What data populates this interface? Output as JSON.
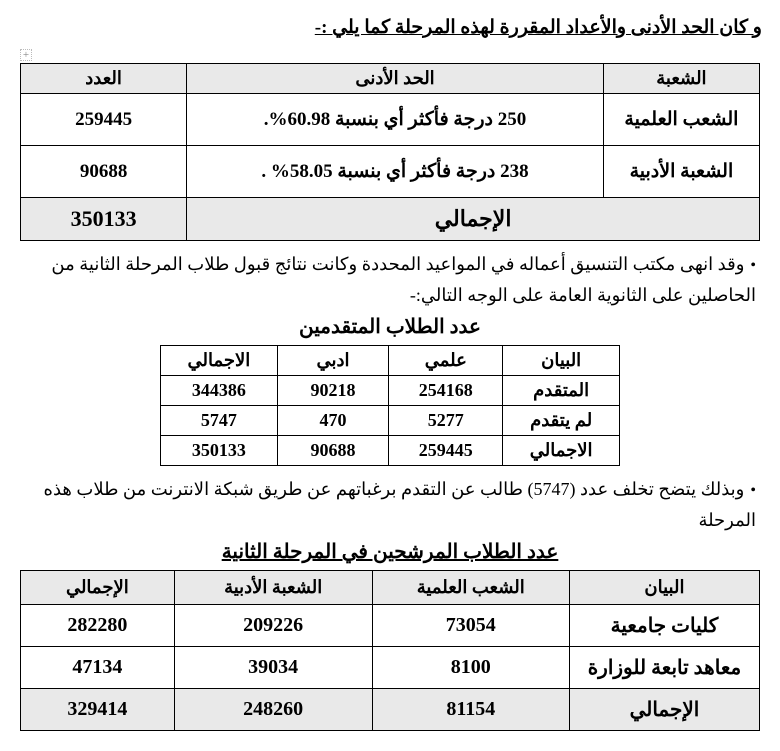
{
  "heading1": "و كان الحد الأدنى والأعداد المقررة لهذه المرحلة كما يلي :-",
  "table1": {
    "headers": {
      "division": "الشعبة",
      "minimum": "الحد الأدنى",
      "count": "العدد"
    },
    "rows": [
      {
        "division": "الشعب العلمية",
        "minimum": "250 درجة فأكثر أي بنسبة 60.98%.",
        "count": "259445"
      },
      {
        "division": "الشعبة الأدبية",
        "minimum": "238 درجة فأكثر أي بنسبة 58.05% .",
        "count": "90688"
      }
    ],
    "total": {
      "label": "الإجمالي",
      "count": "350133"
    }
  },
  "para1": "وقد انهى مكتب التنسيق أعماله في المواعيد المحددة وكانت نتائج قبول طلاب المرحلة الثانية من الحاصلين على الثانوية العامة على الوجه التالي:-",
  "subheading2": "عدد الطلاب المتقدمين",
  "table2": {
    "headers": {
      "item": "البيان",
      "sci": "علمي",
      "lit": "ادبي",
      "total": "الاجمالي"
    },
    "rows": [
      {
        "item": "المتقدم",
        "sci": "254168",
        "lit": "90218",
        "total": "344386"
      },
      {
        "item": "لم يتقدم",
        "sci": "5277",
        "lit": "470",
        "total": "5747"
      },
      {
        "item": "الاجمالي",
        "sci": "259445",
        "lit": "90688",
        "total": "350133"
      }
    ]
  },
  "para2": "وبذلك يتضح تخلف عدد (5747) طالب عن التقدم برغباتهم عن طريق شبكة الانترنت من طلاب هذه المرحلة",
  "subheading3": "عدد الطلاب المرشحين في المرحلة الثانية",
  "table3": {
    "headers": {
      "item": "البيان",
      "sci": "الشعب العلمية",
      "lit": "الشعبة الأدبية",
      "total": "الإجمالي"
    },
    "rows": [
      {
        "item": "كليات جامعية",
        "sci": "73054",
        "lit": "209226",
        "total": "282280"
      },
      {
        "item": "معاهد تابعة للوزارة",
        "sci": "8100",
        "lit": "39034",
        "total": "47134"
      }
    ],
    "total": {
      "item": "الإجمالي",
      "sci": "81154",
      "lit": "248260",
      "total": "329414"
    }
  },
  "colors": {
    "header_bg": "#e9e9e9",
    "border": "#000000",
    "text": "#000000",
    "background": "#ffffff"
  }
}
